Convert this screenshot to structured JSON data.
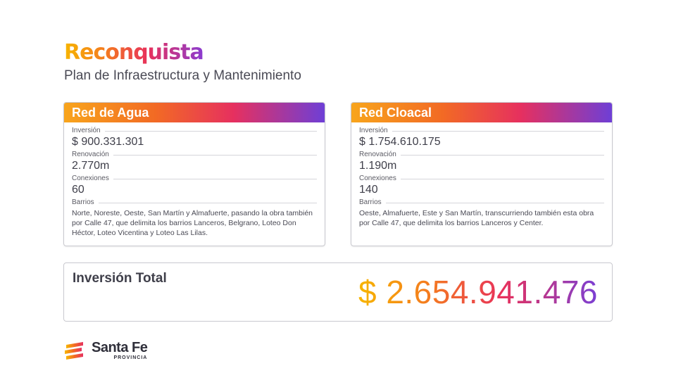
{
  "header": {
    "title": "Reconquista",
    "subtitle": "Plan de Infraestructura y Mantenimiento"
  },
  "cards": [
    {
      "title": "Red de Agua",
      "fields": [
        {
          "label": "Inversión",
          "value": "$ 900.331.301"
        },
        {
          "label": "Renovación",
          "value": "2.770m"
        },
        {
          "label": "Conexiones",
          "value": "60"
        }
      ],
      "barrios_label": "Barrios",
      "barrios_text": "Norte, Noreste, Oeste, San Martín y Almafuerte, pasando la obra también por Calle 47, que delimita los barrios Lanceros, Belgrano, Loteo Don Héctor, Loteo Vicentina y Loteo Las Lilas."
    },
    {
      "title": "Red Cloacal",
      "fields": [
        {
          "label": "Inversión",
          "value": "$ 1.754.610.175"
        },
        {
          "label": "Renovación",
          "value": "1.190m"
        },
        {
          "label": "Conexiones",
          "value": "140"
        }
      ],
      "barrios_label": "Barrios",
      "barrios_text": "Oeste, Almafuerte, Este y San Martín, transcurriendo también esta obra por Calle 47, que delimita los barrios Lanceros y Center."
    }
  ],
  "total": {
    "label": "Inversión Total",
    "value": "$ 2.654.941.476"
  },
  "logo": {
    "name": "Santa Fe",
    "sub": "PROVINCIA",
    "icon": "santa-fe-flag-icon"
  },
  "colors": {
    "gradient": [
      "#f7b500",
      "#f47a20",
      "#e8315b",
      "#7a3fd4"
    ],
    "text": "#3f3f4a",
    "border": "#c9c9cf"
  }
}
